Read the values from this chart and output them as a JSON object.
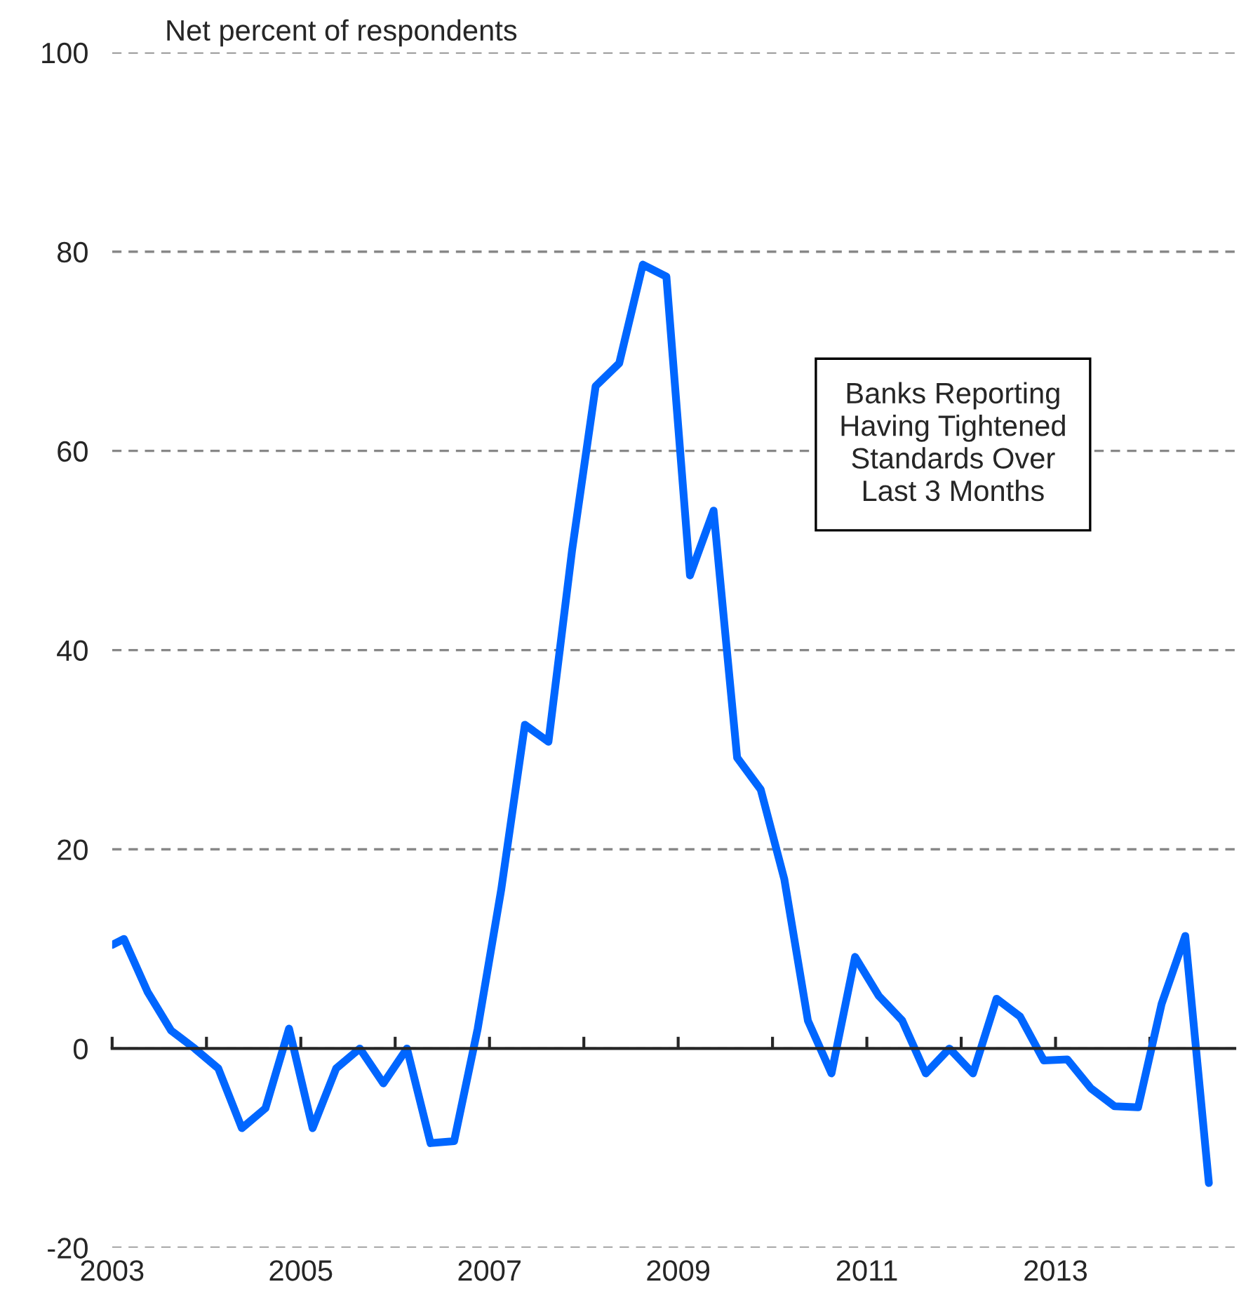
{
  "chart_data": {
    "type": "line",
    "ylabel": "Net percent of respondents",
    "annotations": [
      "Banks Reporting\nHaving Tightened\nStandards Over\nLast 3 Months"
    ],
    "x": [
      2003.0,
      2003.125,
      2003.375,
      2003.625,
      2003.875,
      2004.125,
      2004.375,
      2004.625,
      2004.875,
      2005.125,
      2005.375,
      2005.625,
      2005.875,
      2006.125,
      2006.375,
      2006.625,
      2006.875,
      2007.125,
      2007.375,
      2007.625,
      2007.875,
      2008.125,
      2008.375,
      2008.625,
      2008.875,
      2009.125,
      2009.375,
      2009.625,
      2009.875,
      2010.125,
      2010.375,
      2010.625,
      2010.875,
      2011.125,
      2011.375,
      2011.625,
      2011.875,
      2012.125,
      2012.375,
      2012.625,
      2012.875,
      2013.125,
      2013.375,
      2013.625,
      2013.875,
      2014.125,
      2014.375,
      2014.625
    ],
    "series": [
      {
        "color": "#0066ff",
        "values": [
          10.4,
          11,
          5.7,
          1.8,
          0,
          -2,
          -8,
          -6,
          2,
          -8,
          -2,
          0,
          -3.5,
          0,
          -9.5,
          -9.3,
          2,
          16,
          32.5,
          30.8,
          50,
          66.5,
          68.8,
          78.7,
          77.5,
          47.5,
          54,
          29.2,
          26,
          17,
          2.8,
          -2.5,
          9.2,
          5.3,
          2.8,
          -2.5,
          0,
          -2.5,
          5,
          3.2,
          -1.2,
          -1.1,
          -4,
          -5.8,
          -5.9,
          4.5,
          11.3,
          -13.5
        ]
      }
    ],
    "xlim": [
      2003,
      2014.9
    ],
    "xticks": [
      2003,
      {
        "value": 2004,
        "label": null
      },
      2005,
      {
        "value": 2006,
        "label": null
      },
      2007,
      {
        "value": 2008,
        "label": null
      },
      2009,
      {
        "value": 2010,
        "label": null
      },
      2011,
      {
        "value": 2012,
        "label": null
      },
      2013,
      {
        "value": 2014,
        "label": null
      }
    ],
    "ylim": [
      -20,
      100
    ],
    "yticks": [
      -20,
      0,
      20,
      40,
      60,
      80,
      100
    ],
    "grid": "y",
    "line_style": "solid",
    "marker": "none"
  }
}
